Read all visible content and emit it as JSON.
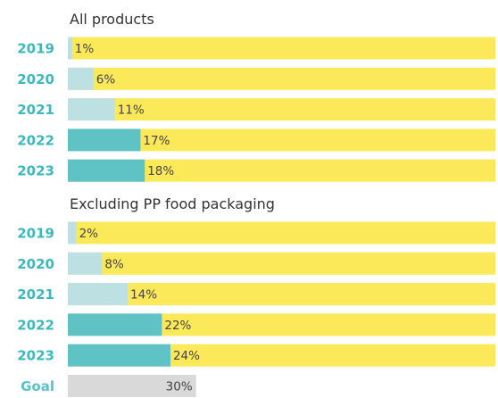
{
  "colors": {
    "background": "#ffffff",
    "track": "#fce95a",
    "light_teal": "#bde0e3",
    "teal": "#5fc3c5",
    "goal_gray": "#d9d9d9",
    "year_label": "#3db8bb",
    "value_label": "#444444",
    "title_text": "#333333"
  },
  "chart_data": [
    {
      "type": "bar",
      "orientation": "horizontal",
      "title": "All products",
      "categories": [
        "2019",
        "2020",
        "2021",
        "2022",
        "2023"
      ],
      "values": [
        1,
        6,
        11,
        17,
        18
      ],
      "value_labels": [
        "1%",
        "6%",
        "11%",
        "17%",
        "18%"
      ],
      "bar_colors": [
        "#bde0e3",
        "#bde0e3",
        "#bde0e3",
        "#5fc3c5",
        "#5fc3c5"
      ],
      "xlim": [
        0,
        100
      ],
      "track_color": "#fce95a",
      "grid": false
    },
    {
      "type": "bar",
      "orientation": "horizontal",
      "title": "Excluding PP food packaging",
      "categories": [
        "2019",
        "2020",
        "2021",
        "2022",
        "2023",
        "Goal"
      ],
      "values": [
        2,
        8,
        14,
        22,
        24,
        30
      ],
      "value_labels": [
        "2%",
        "8%",
        "14%",
        "22%",
        "24%",
        "30%"
      ],
      "bar_colors": [
        "#bde0e3",
        "#bde0e3",
        "#bde0e3",
        "#5fc3c5",
        "#5fc3c5",
        "#d9d9d9"
      ],
      "track": [
        true,
        true,
        true,
        true,
        true,
        false
      ],
      "xlim": [
        0,
        100
      ],
      "track_color": "#fce95a",
      "grid": false
    }
  ]
}
